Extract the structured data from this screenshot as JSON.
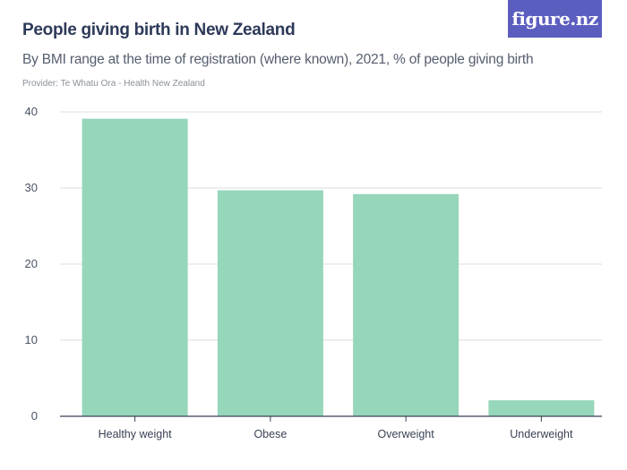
{
  "header": {
    "title": "People giving birth in New Zealand",
    "subtitle": "By BMI range at the time of registration (where known), 2021, % of people giving birth",
    "provider": "Provider: Te Whatu Ora - Health New Zealand",
    "logo_text": "figure.nz"
  },
  "colors": {
    "bar": "#96d6bb",
    "grid": "#dcdcdc",
    "axis": "#3a4255",
    "logo_bg": "#5c5ebf"
  },
  "chart_data": {
    "type": "bar",
    "title": "People giving birth in New Zealand",
    "subtitle": "By BMI range at the time of registration (where known), 2021, % of people giving birth",
    "categories": [
      "Healthy weight",
      "Obese",
      "Overweight",
      "Underweight"
    ],
    "values": [
      39.1,
      29.7,
      29.2,
      2.1
    ],
    "yticks": [
      0,
      10,
      20,
      30,
      40
    ],
    "ylim": [
      0,
      40
    ],
    "xlabel": "",
    "ylabel": "",
    "grid": true,
    "legend": "none"
  }
}
